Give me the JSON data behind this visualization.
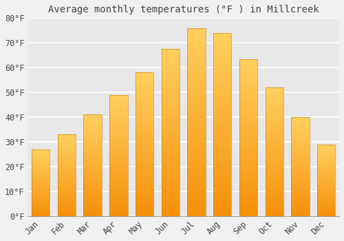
{
  "title": "Average monthly temperatures (°F ) in Millcreek",
  "months": [
    "Jan",
    "Feb",
    "Mar",
    "Apr",
    "May",
    "Jun",
    "Jul",
    "Aug",
    "Sep",
    "Oct",
    "Nov",
    "Dec"
  ],
  "values": [
    27,
    33,
    41,
    49,
    58,
    67.5,
    76,
    74,
    63.5,
    52,
    40,
    29
  ],
  "bar_color": "#FFBB33",
  "bar_gradient_top": "#FFD060",
  "bar_gradient_bottom": "#F5900A",
  "ylim": [
    0,
    80
  ],
  "yticks": [
    0,
    10,
    20,
    30,
    40,
    50,
    60,
    70,
    80
  ],
  "ytick_labels": [
    "0°F",
    "10°F",
    "20°F",
    "30°F",
    "40°F",
    "50°F",
    "60°F",
    "70°F",
    "80°F"
  ],
  "background_color": "#f0f0f0",
  "plot_bg_color": "#e8e8e8",
  "grid_color": "#ffffff",
  "title_fontsize": 10,
  "tick_fontsize": 8.5,
  "tick_color": "#444444",
  "font_family": "monospace"
}
